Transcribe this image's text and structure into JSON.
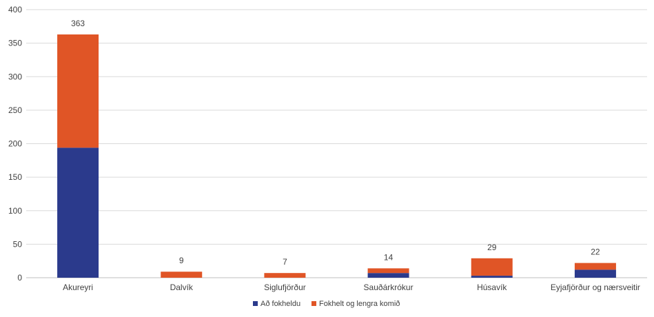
{
  "chart_data": {
    "type": "bar",
    "stacked": true,
    "categories": [
      "Akureyri",
      "Dalvík",
      "Siglufjörður",
      "Sauðárkrókur",
      "Húsavík",
      "Eyjafjörður og nærsveitir"
    ],
    "series": [
      {
        "name": "Að fokheldu",
        "color": "#2b3a8c",
        "values": [
          194,
          0,
          0,
          7,
          3,
          12
        ]
      },
      {
        "name": "Fokhelt og lengra komið",
        "color": "#e05526",
        "values": [
          169,
          9,
          7,
          7,
          26,
          10
        ]
      }
    ],
    "totals": [
      363,
      9,
      7,
      14,
      29,
      22
    ],
    "ylim": [
      0,
      400
    ],
    "yticks": [
      0,
      50,
      100,
      150,
      200,
      250,
      300,
      350,
      400
    ],
    "grid": true,
    "legend_position": "bottom"
  }
}
